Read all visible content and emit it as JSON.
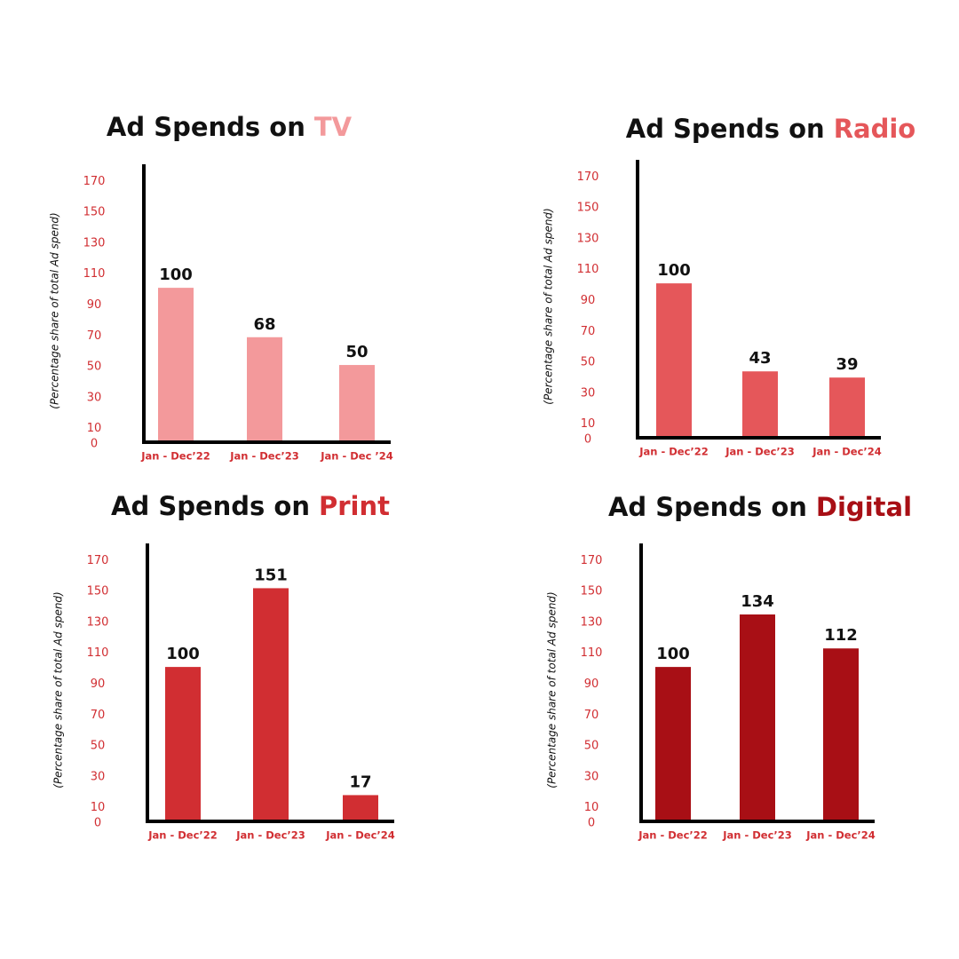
{
  "chart_data": [
    {
      "type": "bar",
      "title": "Ad Spends on",
      "title_accent": "TV",
      "ylabel": "(Percentage share of total Ad spend)",
      "categories": [
        "Jan - Dec’22",
        "Jan - Dec’23",
        "Jan - Dec ’24"
      ],
      "values": [
        100,
        68,
        50
      ],
      "color": "#f3999b",
      "ylim": [
        0,
        180
      ],
      "yticks": [
        0,
        10,
        30,
        50,
        70,
        90,
        110,
        130,
        150,
        170
      ]
    },
    {
      "type": "bar",
      "title": "Ad Spends on",
      "title_accent": "Radio",
      "ylabel": "(Percentage share of total Ad spend)",
      "categories": [
        "Jan - Dec’22",
        "Jan - Dec’23",
        "Jan - Dec’24"
      ],
      "values": [
        100,
        43,
        39
      ],
      "color": "#e5575a",
      "ylim": [
        0,
        180
      ],
      "yticks": [
        0,
        10,
        30,
        50,
        70,
        90,
        110,
        130,
        150,
        170
      ]
    },
    {
      "type": "bar",
      "title": "Ad Spends on",
      "title_accent": "Print",
      "ylabel": "(Percentage share of total Ad spend)",
      "categories": [
        "Jan - Dec’22",
        "Jan - Dec’23",
        "Jan - Dec’24"
      ],
      "values": [
        100,
        151,
        17
      ],
      "color": "#d12e32",
      "ylim": [
        0,
        180
      ],
      "yticks": [
        0,
        10,
        30,
        50,
        70,
        90,
        110,
        130,
        150,
        170
      ]
    },
    {
      "type": "bar",
      "title": "Ad Spends on",
      "title_accent": "Digital",
      "ylabel": "(Percentage share of total Ad spend)",
      "categories": [
        "Jan - Dec’22",
        "Jan - Dec’23",
        "Jan - Dec’24"
      ],
      "values": [
        100,
        134,
        112
      ],
      "color": "#a80f15",
      "ylim": [
        0,
        180
      ],
      "yticks": [
        0,
        10,
        30,
        50,
        70,
        90,
        110,
        130,
        150,
        170
      ]
    }
  ]
}
